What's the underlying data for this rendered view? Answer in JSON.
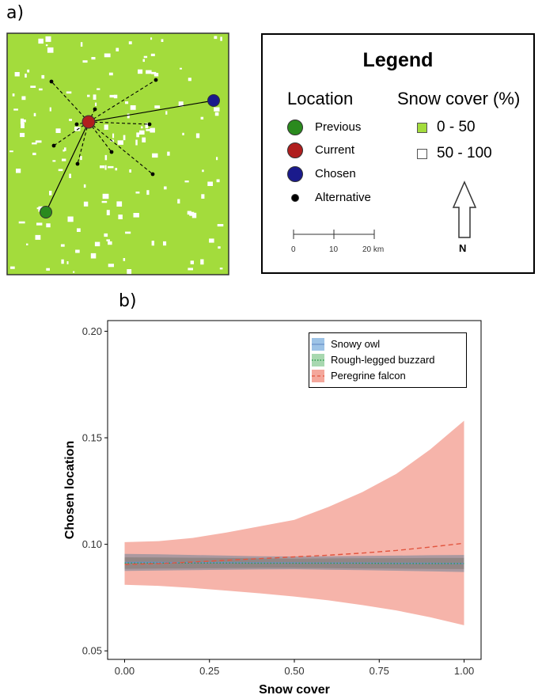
{
  "panel_a": {
    "label": "a)",
    "map": {
      "background_color": "#a3dc3c",
      "patch_color": "#ffffff",
      "point_colors": {
        "previous": "#2a8a1e",
        "current": "#b01e1e",
        "chosen": "#1a1a8c",
        "alternative": "#000000"
      }
    },
    "legend": {
      "title": "Legend",
      "location_heading": "Location",
      "snow_heading": "Snow cover (%)",
      "location_items": [
        {
          "label": "Previous",
          "color": "#2a8a1e"
        },
        {
          "label": "Current",
          "color": "#b01e1e"
        },
        {
          "label": "Chosen",
          "color": "#1a1a8c"
        },
        {
          "label": "Alternative",
          "color": "#000000"
        }
      ],
      "snow_items": [
        {
          "label": "0 - 50",
          "color": "#a3dc3c"
        },
        {
          "label": "50 - 100",
          "color": "#ffffff"
        }
      ],
      "scale_labels": [
        "0",
        "10",
        "20 km"
      ],
      "north_label": "N"
    }
  },
  "panel_b": {
    "label": "b)"
  },
  "chart_data": {
    "type": "line",
    "title": "",
    "xlabel": "Snow cover",
    "ylabel": "Chosen location",
    "xlim": [
      -0.05,
      1.05
    ],
    "ylim": [
      0.046,
      0.205
    ],
    "x_ticks": [
      "0.00",
      "0.25",
      "0.50",
      "0.75",
      "1.00"
    ],
    "y_ticks": [
      "0.05",
      "0.10",
      "0.15",
      "0.20"
    ],
    "grid": false,
    "legend_position": "top-right",
    "x": [
      0,
      0.1,
      0.2,
      0.3,
      0.4,
      0.5,
      0.6,
      0.7,
      0.8,
      0.9,
      1.0
    ],
    "series": [
      {
        "name": "Snowy owl",
        "line_style": "solid",
        "color": "#6a8fc8",
        "band_color": "#9dc3e6",
        "values": [
          0.0915,
          0.0915,
          0.0914,
          0.0914,
          0.0913,
          0.0913,
          0.0912,
          0.0912,
          0.0911,
          0.0911,
          0.091
        ],
        "lower": [
          0.0875,
          0.0877,
          0.0879,
          0.0881,
          0.0882,
          0.0883,
          0.0881,
          0.0879,
          0.0876,
          0.0873,
          0.087
        ],
        "upper": [
          0.0955,
          0.0953,
          0.095,
          0.0947,
          0.0944,
          0.0943,
          0.0944,
          0.0946,
          0.0947,
          0.0949,
          0.095
        ]
      },
      {
        "name": "Rough-legged buzzard",
        "line_style": "dotted",
        "color": "#2e9a4e",
        "band_color": "#a8d8b0",
        "values": [
          0.0912,
          0.0912,
          0.0912,
          0.0912,
          0.0911,
          0.0911,
          0.0911,
          0.0911,
          0.091,
          0.091,
          0.091
        ],
        "lower": [
          0.0885,
          0.0886,
          0.0887,
          0.0888,
          0.0889,
          0.0889,
          0.0888,
          0.0887,
          0.0886,
          0.0885,
          0.0884
        ],
        "upper": [
          0.0939,
          0.0938,
          0.0937,
          0.0936,
          0.0934,
          0.0933,
          0.0934,
          0.0935,
          0.0935,
          0.0936,
          0.0936
        ]
      },
      {
        "name": "Peregrine falcon",
        "line_style": "dashed",
        "color": "#e2553f",
        "band_color": "#f4a79b",
        "values": [
          0.0905,
          0.091,
          0.0917,
          0.0925,
          0.0933,
          0.0941,
          0.0949,
          0.0959,
          0.0971,
          0.0987,
          0.1005
        ],
        "lower": [
          0.081,
          0.0805,
          0.0795,
          0.0783,
          0.077,
          0.0755,
          0.0737,
          0.0715,
          0.069,
          0.0658,
          0.062
        ],
        "upper": [
          0.101,
          0.1015,
          0.103,
          0.1055,
          0.1085,
          0.1115,
          0.1175,
          0.1245,
          0.133,
          0.1445,
          0.158
        ]
      }
    ]
  }
}
